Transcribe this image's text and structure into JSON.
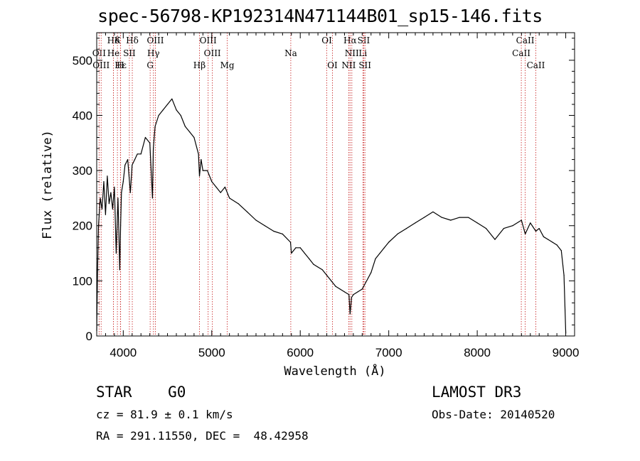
{
  "chart_data": {
    "type": "line",
    "title": "spec-56798-KP192314N471144B01_sp15-146.fits",
    "xlabel": "Wavelength (Å)",
    "ylabel": "Flux (relative)",
    "xlim": [
      3700,
      9100
    ],
    "ylim": [
      0,
      550
    ],
    "xticks": [
      4000,
      5000,
      6000,
      7000,
      8000,
      9000
    ],
    "yticks": [
      0,
      100,
      200,
      300,
      400,
      500
    ],
    "grid": false,
    "series": [
      {
        "x": [
          3700,
          3710,
          3720,
          3740,
          3760,
          3780,
          3800,
          3820,
          3840,
          3860,
          3880,
          3900,
          3920,
          3940,
          3960,
          3970,
          3980,
          4000,
          4020,
          4050,
          4080,
          4100,
          4130,
          4160,
          4200,
          4250,
          4300,
          4330,
          4340,
          4360,
          4400,
          4450,
          4500,
          4550,
          4600,
          4650,
          4700,
          4750,
          4800,
          4850,
          4861,
          4880,
          4900,
          4950,
          5000,
          5050,
          5100,
          5150,
          5200,
          5300,
          5400,
          5500,
          5600,
          5700,
          5800,
          5890,
          5900,
          5950,
          6000,
          6050,
          6100,
          6150,
          6200,
          6250,
          6300,
          6350,
          6400,
          6450,
          6500,
          6550,
          6563,
          6580,
          6600,
          6650,
          6700,
          6750,
          6800,
          6850,
          6900,
          6950,
          7000,
          7100,
          7200,
          7300,
          7400,
          7500,
          7600,
          7700,
          7800,
          7900,
          8000,
          8100,
          8200,
          8300,
          8400,
          8500,
          8542,
          8600,
          8662,
          8700,
          8750,
          8800,
          8850,
          8900,
          8950,
          8980,
          9000
        ],
        "y": [
          10,
          120,
          200,
          250,
          230,
          280,
          220,
          290,
          240,
          260,
          230,
          270,
          150,
          250,
          120,
          200,
          260,
          280,
          310,
          320,
          260,
          310,
          320,
          330,
          330,
          360,
          350,
          250,
          340,
          380,
          400,
          410,
          420,
          430,
          410,
          400,
          380,
          370,
          360,
          330,
          290,
          320,
          300,
          300,
          280,
          270,
          260,
          270,
          250,
          240,
          225,
          210,
          200,
          190,
          185,
          170,
          150,
          160,
          160,
          150,
          140,
          130,
          125,
          120,
          110,
          100,
          90,
          85,
          80,
          75,
          40,
          70,
          75,
          80,
          85,
          100,
          115,
          140,
          150,
          160,
          170,
          185,
          195,
          205,
          215,
          225,
          215,
          210,
          215,
          215,
          205,
          195,
          175,
          195,
          200,
          210,
          185,
          205,
          190,
          195,
          180,
          175,
          170,
          165,
          155,
          110,
          5
        ]
      }
    ],
    "lines": [
      {
        "label": "Hδ",
        "wl": 3889,
        "row": 0
      },
      {
        "label": "K",
        "wl": 3934,
        "row": 0
      },
      {
        "label": "Hδ",
        "wl": 4102,
        "row": 0
      },
      {
        "label": "OIII",
        "wl": 4363,
        "row": 0
      },
      {
        "label": "OIII",
        "wl": 4959,
        "row": 0
      },
      {
        "label": "OI",
        "wl": 6300,
        "row": 0
      },
      {
        "label": "Hα",
        "wl": 6563,
        "row": 0
      },
      {
        "label": "SII",
        "wl": 6717,
        "row": 0
      },
      {
        "label": "CaII",
        "wl": 8542,
        "row": 0
      },
      {
        "label": "OII",
        "wl": 3727,
        "row": 1
      },
      {
        "label": "He",
        "wl": 3889,
        "row": 1
      },
      {
        "label": "SII",
        "wl": 4069,
        "row": 1
      },
      {
        "label": "Hγ",
        "wl": 4341,
        "row": 1
      },
      {
        "label": "OIII",
        "wl": 5007,
        "row": 1
      },
      {
        "label": "Na",
        "wl": 5893,
        "row": 1
      },
      {
        "label": "NII",
        "wl": 6583,
        "row": 1
      },
      {
        "label": "Li",
        "wl": 6708,
        "row": 1
      },
      {
        "label": "CaII",
        "wl": 8498,
        "row": 1
      },
      {
        "label": "OIII",
        "wl": 3750,
        "row": 2
      },
      {
        "label": "Hε",
        "wl": 3970,
        "row": 2
      },
      {
        "label": "H",
        "wl": 3968,
        "row": 2
      },
      {
        "label": "G",
        "wl": 4304,
        "row": 2
      },
      {
        "label": "Hβ",
        "wl": 4861,
        "row": 2
      },
      {
        "label": "Mg",
        "wl": 5175,
        "row": 2
      },
      {
        "label": "OI",
        "wl": 6364,
        "row": 2
      },
      {
        "label": "NII",
        "wl": 6548,
        "row": 2
      },
      {
        "label": "SII",
        "wl": 6731,
        "row": 2
      },
      {
        "label": "CaII",
        "wl": 8662,
        "row": 2
      }
    ]
  },
  "info": {
    "class": "STAR    G0",
    "survey": "LAMOST DR3",
    "cz": "cz = 81.9 ± 0.1 km/s",
    "obsdate": "Obs-Date: 20140520",
    "radec": "RA = 291.11550, DEC =  48.42958"
  }
}
